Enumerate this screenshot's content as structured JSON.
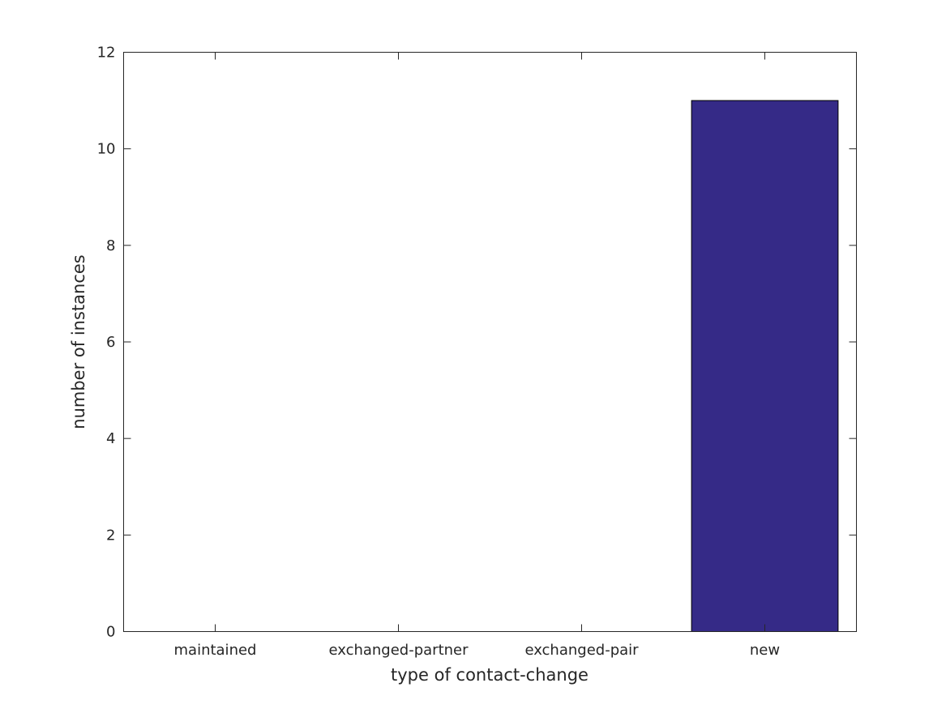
{
  "chart_data": {
    "type": "bar",
    "title": "",
    "xlabel": "type of contact-change",
    "ylabel": "number of instances",
    "categories": [
      "maintained",
      "exchanged-partner",
      "exchanged-pair",
      "new"
    ],
    "values": [
      0,
      0,
      0,
      11
    ],
    "ylim": [
      0,
      12
    ],
    "yticks": [
      0,
      2,
      4,
      6,
      8,
      10,
      12
    ],
    "grid": false,
    "bar_color": "#352a87",
    "edge_color": "#000000"
  }
}
